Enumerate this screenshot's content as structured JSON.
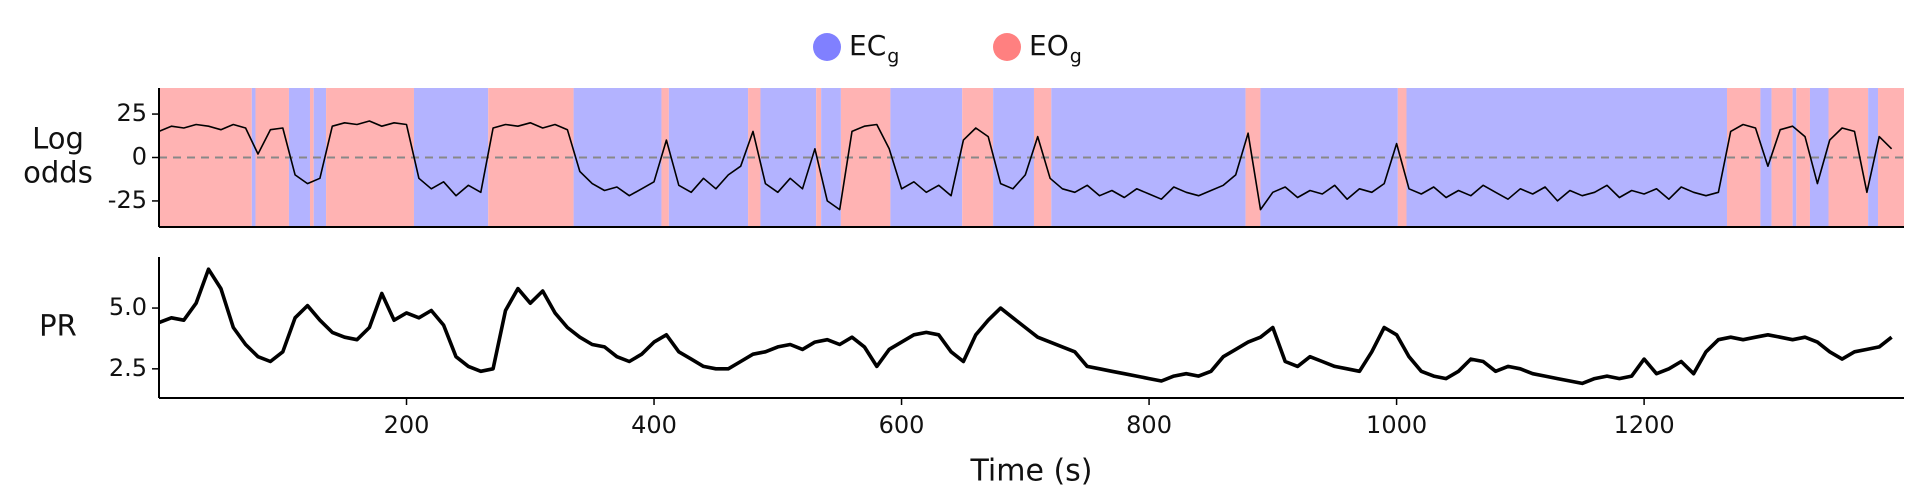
{
  "chart_data": [
    {
      "type": "line",
      "ylabel_lines": [
        "Log",
        "odds"
      ],
      "legend": [
        {
          "name": "EC",
          "sub": "g",
          "color": "#8080ff",
          "region_color": "#b3b3ff"
        },
        {
          "name": "EO",
          "sub": "g",
          "color": "#ff8080",
          "region_color": "#ffb3b3"
        }
      ],
      "intervals": [
        {
          "start": 0,
          "end": 75,
          "state": 1
        },
        {
          "start": 75,
          "end": 78,
          "state": 0
        },
        {
          "start": 78,
          "end": 105,
          "state": 1
        },
        {
          "start": 105,
          "end": 122,
          "state": 0
        },
        {
          "start": 122,
          "end": 125,
          "state": 1
        },
        {
          "start": 125,
          "end": 135,
          "state": 0
        },
        {
          "start": 135,
          "end": 206,
          "state": 1
        },
        {
          "start": 206,
          "end": 266,
          "state": 0
        },
        {
          "start": 266,
          "end": 335,
          "state": 1
        },
        {
          "start": 335,
          "end": 406,
          "state": 0
        },
        {
          "start": 406,
          "end": 412,
          "state": 1
        },
        {
          "start": 412,
          "end": 476,
          "state": 0
        },
        {
          "start": 476,
          "end": 486,
          "state": 1
        },
        {
          "start": 486,
          "end": 531,
          "state": 0
        },
        {
          "start": 531,
          "end": 535,
          "state": 1
        },
        {
          "start": 535,
          "end": 551,
          "state": 0
        },
        {
          "start": 551,
          "end": 591,
          "state": 1
        },
        {
          "start": 591,
          "end": 649,
          "state": 0
        },
        {
          "start": 649,
          "end": 674,
          "state": 1
        },
        {
          "start": 674,
          "end": 707,
          "state": 0
        },
        {
          "start": 707,
          "end": 721,
          "state": 1
        },
        {
          "start": 721,
          "end": 878,
          "state": 0
        },
        {
          "start": 878,
          "end": 890,
          "state": 1
        },
        {
          "start": 890,
          "end": 1001,
          "state": 0
        },
        {
          "start": 1001,
          "end": 1008,
          "state": 1
        },
        {
          "start": 1008,
          "end": 1267,
          "state": 0
        },
        {
          "start": 1267,
          "end": 1294,
          "state": 1
        },
        {
          "start": 1294,
          "end": 1303,
          "state": 0
        },
        {
          "start": 1303,
          "end": 1320,
          "state": 1
        },
        {
          "start": 1320,
          "end": 1323,
          "state": 0
        },
        {
          "start": 1323,
          "end": 1334,
          "state": 1
        },
        {
          "start": 1334,
          "end": 1349,
          "state": 0
        },
        {
          "start": 1349,
          "end": 1381,
          "state": 1
        },
        {
          "start": 1381,
          "end": 1389,
          "state": 0
        },
        {
          "start": 1389,
          "end": 1410,
          "state": 1
        }
      ],
      "hline": 0,
      "color": "#000000",
      "x": [
        0,
        10,
        20,
        30,
        40,
        50,
        60,
        70,
        80,
        90,
        100,
        110,
        120,
        130,
        140,
        150,
        160,
        170,
        180,
        190,
        200,
        210,
        220,
        230,
        240,
        250,
        260,
        270,
        280,
        290,
        300,
        310,
        320,
        330,
        340,
        350,
        360,
        370,
        380,
        390,
        400,
        410,
        420,
        430,
        440,
        450,
        460,
        470,
        480,
        490,
        500,
        510,
        520,
        530,
        540,
        550,
        560,
        570,
        580,
        590,
        600,
        610,
        620,
        630,
        640,
        650,
        660,
        670,
        680,
        690,
        700,
        710,
        720,
        730,
        740,
        750,
        760,
        770,
        780,
        790,
        800,
        810,
        820,
        830,
        840,
        850,
        860,
        870,
        880,
        890,
        900,
        910,
        920,
        930,
        940,
        950,
        960,
        970,
        980,
        990,
        1000,
        1010,
        1020,
        1030,
        1040,
        1050,
        1060,
        1070,
        1080,
        1090,
        1100,
        1110,
        1120,
        1130,
        1140,
        1150,
        1160,
        1170,
        1180,
        1190,
        1200,
        1210,
        1220,
        1230,
        1240,
        1250,
        1260,
        1270,
        1280,
        1290,
        1300,
        1310,
        1320,
        1330,
        1340,
        1350,
        1360,
        1370,
        1380,
        1390,
        1400
      ],
      "values": [
        15,
        18,
        17,
        19,
        18,
        16,
        19,
        17,
        2,
        16,
        17,
        -10,
        -15,
        -12,
        18,
        20,
        19,
        21,
        18,
        20,
        19,
        -12,
        -18,
        -14,
        -22,
        -16,
        -20,
        17,
        19,
        18,
        20,
        17,
        19,
        16,
        -8,
        -15,
        -19,
        -17,
        -22,
        -18,
        -14,
        10,
        -16,
        -20,
        -12,
        -18,
        -10,
        -5,
        15,
        -15,
        -20,
        -12,
        -18,
        5,
        -25,
        -30,
        15,
        18,
        19,
        5,
        -18,
        -14,
        -20,
        -16,
        -22,
        10,
        17,
        12,
        -15,
        -18,
        -10,
        12,
        -12,
        -18,
        -20,
        -16,
        -22,
        -19,
        -23,
        -18,
        -21,
        -24,
        -17,
        -20,
        -22,
        -19,
        -16,
        -10,
        14,
        -30,
        -20,
        -17,
        -23,
        -19,
        -21,
        -16,
        -24,
        -18,
        -20,
        -15,
        8,
        -18,
        -21,
        -17,
        -23,
        -19,
        -22,
        -16,
        -20,
        -24,
        -18,
        -21,
        -17,
        -25,
        -19,
        -22,
        -20,
        -16,
        -23,
        -19,
        -21,
        -18,
        -24,
        -17,
        -20,
        -22,
        -20,
        15,
        19,
        17,
        -5,
        16,
        18,
        12,
        -15,
        10,
        17,
        15,
        -20,
        12,
        5
      ],
      "xlim": [
        0,
        1410
      ],
      "ylim": [
        -40,
        40
      ],
      "yticks": [
        25,
        0,
        -25
      ]
    },
    {
      "type": "line",
      "ylabel_lines": [
        "PR"
      ],
      "color": "#000000",
      "x": [
        0,
        10,
        20,
        30,
        40,
        50,
        60,
        70,
        80,
        90,
        100,
        110,
        120,
        130,
        140,
        150,
        160,
        170,
        180,
        190,
        200,
        210,
        220,
        230,
        240,
        250,
        260,
        270,
        280,
        290,
        300,
        310,
        320,
        330,
        340,
        350,
        360,
        370,
        380,
        390,
        400,
        410,
        420,
        430,
        440,
        450,
        460,
        470,
        480,
        490,
        500,
        510,
        520,
        530,
        540,
        550,
        560,
        570,
        580,
        590,
        600,
        610,
        620,
        630,
        640,
        650,
        660,
        670,
        680,
        690,
        700,
        710,
        720,
        730,
        740,
        750,
        760,
        770,
        780,
        790,
        800,
        810,
        820,
        830,
        840,
        850,
        860,
        870,
        880,
        890,
        900,
        910,
        920,
        930,
        940,
        950,
        960,
        970,
        980,
        990,
        1000,
        1010,
        1020,
        1030,
        1040,
        1050,
        1060,
        1070,
        1080,
        1090,
        1100,
        1110,
        1120,
        1130,
        1140,
        1150,
        1160,
        1170,
        1180,
        1190,
        1200,
        1210,
        1220,
        1230,
        1240,
        1250,
        1260,
        1270,
        1280,
        1290,
        1300,
        1310,
        1320,
        1330,
        1340,
        1350,
        1360,
        1370,
        1380,
        1390,
        1400
      ],
      "values": [
        4.4,
        4.6,
        4.5,
        5.2,
        6.6,
        5.8,
        4.2,
        3.5,
        3.0,
        2.8,
        3.2,
        4.6,
        5.1,
        4.5,
        4.0,
        3.8,
        3.7,
        4.2,
        5.6,
        4.5,
        4.8,
        4.6,
        4.9,
        4.3,
        3.0,
        2.6,
        2.4,
        2.5,
        4.9,
        5.8,
        5.2,
        5.7,
        4.8,
        4.2,
        3.8,
        3.5,
        3.4,
        3.0,
        2.8,
        3.1,
        3.6,
        3.9,
        3.2,
        2.9,
        2.6,
        2.5,
        2.5,
        2.8,
        3.1,
        3.2,
        3.4,
        3.5,
        3.3,
        3.6,
        3.7,
        3.5,
        3.8,
        3.4,
        2.6,
        3.3,
        3.6,
        3.9,
        4.0,
        3.9,
        3.2,
        2.8,
        3.9,
        4.5,
        5.0,
        4.6,
        4.2,
        3.8,
        3.6,
        3.4,
        3.2,
        2.6,
        2.5,
        2.4,
        2.3,
        2.2,
        2.1,
        2.0,
        2.2,
        2.3,
        2.2,
        2.4,
        3.0,
        3.3,
        3.6,
        3.8,
        4.2,
        2.8,
        2.6,
        3.0,
        2.8,
        2.6,
        2.5,
        2.4,
        3.2,
        4.2,
        3.9,
        3.0,
        2.4,
        2.2,
        2.1,
        2.4,
        2.9,
        2.8,
        2.4,
        2.6,
        2.5,
        2.3,
        2.2,
        2.1,
        2.0,
        1.9,
        2.1,
        2.2,
        2.1,
        2.2,
        2.9,
        2.3,
        2.5,
        2.8,
        2.3,
        3.2,
        3.7,
        3.8,
        3.7,
        3.8,
        3.9,
        3.8,
        3.7,
        3.8,
        3.6,
        3.2,
        2.9,
        3.2,
        3.3,
        3.4,
        3.8
      ],
      "xlim": [
        0,
        1410
      ],
      "ylim": [
        1.3,
        7.1
      ],
      "yticks": [
        {
          "value": 5,
          "label": "5.0"
        },
        2.5
      ],
      "xticks": [
        200,
        400,
        600,
        800,
        1000,
        1200
      ],
      "xlabel": "Time (s)"
    }
  ]
}
